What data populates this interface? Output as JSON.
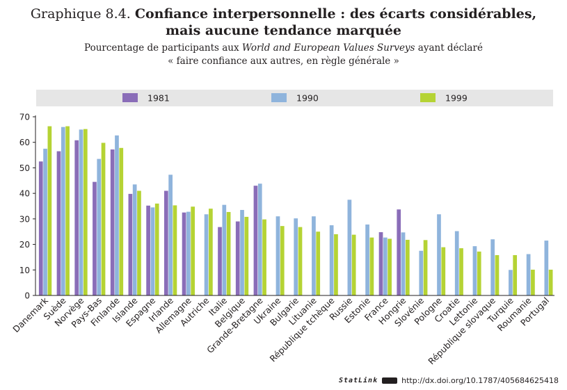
{
  "title": {
    "prefix": "Graphique 8.4.",
    "main_line1": "Confiance interpersonnelle : des écarts considérables,",
    "main_line2": "mais aucune tendance marquée"
  },
  "subtitle": {
    "part1": "Pourcentage de participants aux ",
    "italic": "World and European Values Surveys",
    "part2": " ayant déclaré",
    "line2": "« faire confiance aux autres, en règle générale »"
  },
  "footer": {
    "statlink": "StatLink",
    "url": "http://dx.doi.org/10.1787/405684625418"
  },
  "colors": {
    "1981": "#8a6db8",
    "1990": "#8fb4dc",
    "1999": "#b5d334",
    "legend_bg": "#e6e6e6",
    "axis": "#231f20"
  },
  "chart_data": {
    "type": "bar",
    "title": "Confiance interpersonnelle : des écarts considérables, mais aucune tendance marquée",
    "xlabel": "",
    "ylabel": "",
    "ylim": [
      0,
      70
    ],
    "yticks": [
      0,
      10,
      20,
      30,
      40,
      50,
      60,
      70
    ],
    "legend_position": "top",
    "categories": [
      "Danemark",
      "Suède",
      "Norvège",
      "Pays-Bas",
      "Finlande",
      "Islande",
      "Espagne",
      "Irlande",
      "Allemagne",
      "Autriche",
      "Italie",
      "Belgique",
      "Grande-Bretagne",
      "Ukraine",
      "Bulgarie",
      "Lituanie",
      "République tchèque",
      "Russie",
      "Estonie",
      "France",
      "Hongrie",
      "Slovénie",
      "Pologne",
      "Croatie",
      "Lettonie",
      "République slovaque",
      "Turquie",
      "Roumanie",
      "Portugal"
    ],
    "series": [
      {
        "name": "1981",
        "values": [
          52.5,
          56.5,
          60.8,
          44.5,
          57.2,
          39.8,
          35.2,
          41.0,
          32.5,
          null,
          26.8,
          29.0,
          43.0,
          null,
          null,
          null,
          null,
          null,
          null,
          24.8,
          33.7,
          null,
          null,
          null,
          null,
          null,
          null,
          null,
          null
        ]
      },
      {
        "name": "1990",
        "values": [
          57.5,
          66.0,
          65.0,
          53.5,
          62.7,
          43.5,
          34.5,
          47.3,
          32.8,
          31.8,
          35.5,
          33.5,
          43.8,
          31.0,
          30.2,
          31.0,
          27.5,
          37.5,
          27.8,
          22.7,
          24.7,
          17.5,
          31.8,
          25.2,
          19.3,
          22.0,
          10.0,
          16.2,
          21.5
        ]
      },
      {
        "name": "1999",
        "values": [
          66.3,
          66.3,
          65.2,
          59.8,
          57.8,
          41.0,
          36.0,
          35.3,
          34.8,
          34.0,
          32.7,
          30.8,
          29.8,
          27.2,
          26.8,
          25.0,
          24.0,
          23.8,
          22.7,
          22.2,
          21.8,
          21.7,
          18.9,
          18.5,
          17.2,
          15.8,
          15.8,
          10.1,
          10.1
        ]
      }
    ]
  }
}
